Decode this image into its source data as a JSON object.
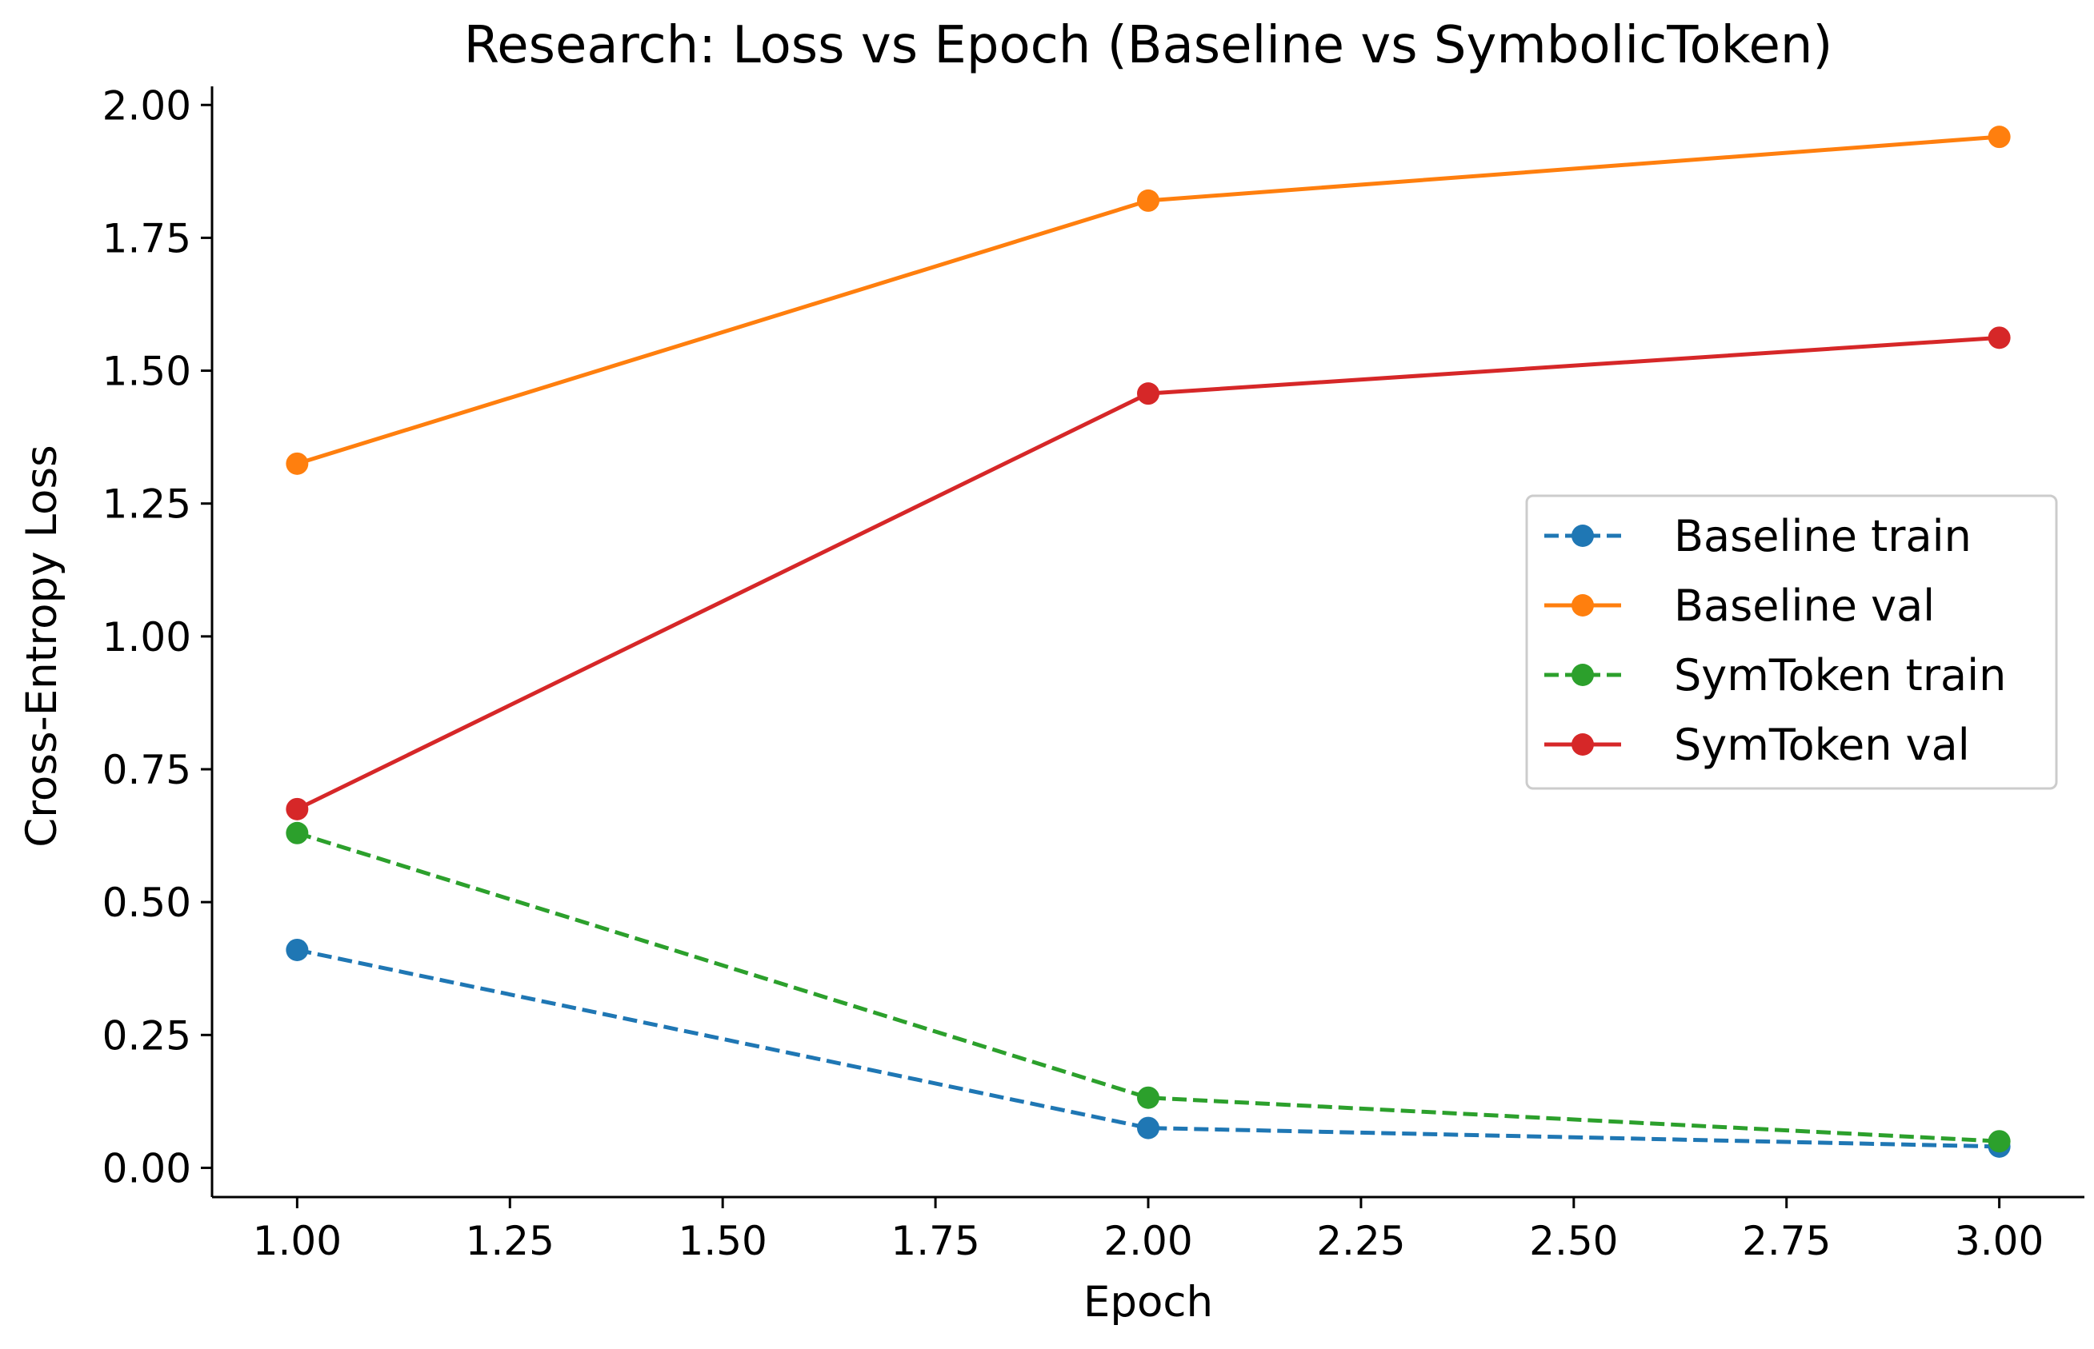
{
  "chart_data": {
    "type": "line",
    "title": "Research: Loss vs Epoch (Baseline vs SymbolicToken)",
    "xlabel": "Epoch",
    "ylabel": "Cross-Entropy Loss",
    "xlim": [
      0.9,
      3.1
    ],
    "ylim": [
      -0.055,
      2.035
    ],
    "xticks": [
      1.0,
      1.25,
      1.5,
      1.75,
      2.0,
      2.25,
      2.5,
      2.75,
      3.0
    ],
    "xtick_labels": [
      "1.00",
      "1.25",
      "1.50",
      "1.75",
      "2.00",
      "2.25",
      "2.50",
      "2.75",
      "3.00"
    ],
    "yticks": [
      0.0,
      0.25,
      0.5,
      0.75,
      1.0,
      1.25,
      1.5,
      1.75,
      2.0
    ],
    "ytick_labels": [
      "0.00",
      "0.25",
      "0.50",
      "0.75",
      "1.00",
      "1.25",
      "1.50",
      "1.75",
      "2.00"
    ],
    "grid": false,
    "legend_position": "center-right",
    "x": [
      1,
      2,
      3
    ],
    "series": [
      {
        "name": "Baseline train",
        "values": [
          0.41,
          0.075,
          0.04
        ],
        "color": "#1f77b4",
        "dashed": true
      },
      {
        "name": "Baseline val",
        "values": [
          1.325,
          1.82,
          1.94
        ],
        "color": "#ff7f0e",
        "dashed": false
      },
      {
        "name": "SymToken train",
        "values": [
          0.63,
          0.132,
          0.05
        ],
        "color": "#2ca02c",
        "dashed": true
      },
      {
        "name": "SymToken val",
        "values": [
          0.675,
          1.457,
          1.562
        ],
        "color": "#d62728",
        "dashed": false
      }
    ]
  }
}
